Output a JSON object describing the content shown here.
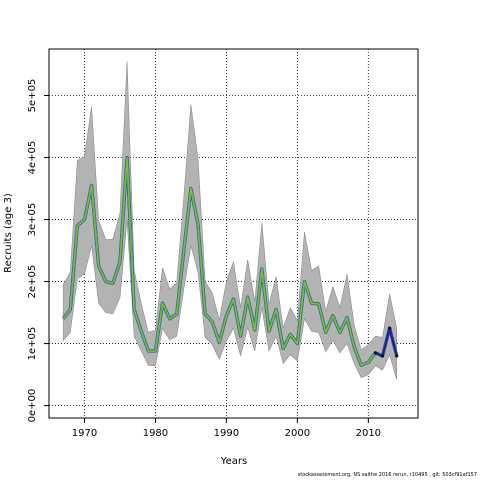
{
  "footer_text": "stockassessment.org, NS saithe 2016 rerun, r10495 , git: 503cf91af157",
  "colors": {
    "ci_band": "#b3b3b3",
    "ci_outline": "#8c8c8c",
    "lines": [
      "#1f1f8f",
      "#3070c0",
      "#20a0a0",
      "#2e9e4a",
      "#8ab832"
    ],
    "final_line": "#1f1f8f"
  },
  "chart_data": {
    "type": "line",
    "title": "",
    "xlabel": "Years",
    "ylabel": "Recruits (age 3)",
    "xlim": [
      1965,
      2017
    ],
    "ylim": [
      -20000,
      575000
    ],
    "xticks": [
      1970,
      1980,
      1990,
      2000,
      2010
    ],
    "xtick_labels": [
      "1970",
      "1980",
      "1990",
      "2000",
      "2010"
    ],
    "yticks": [
      0,
      100000,
      200000,
      300000,
      400000,
      500000
    ],
    "ytick_labels": [
      "0e+00",
      "1e+05",
      "2e+05",
      "3e+05",
      "4e+05",
      "5e+05"
    ],
    "grid": true,
    "x": [
      1967,
      1968,
      1969,
      1970,
      1971,
      1972,
      1973,
      1974,
      1975,
      1976,
      1977,
      1978,
      1979,
      1980,
      1981,
      1982,
      1983,
      1984,
      1985,
      1986,
      1987,
      1988,
      1989,
      1990,
      1991,
      1992,
      1993,
      1994,
      1995,
      1996,
      1997,
      1998,
      1999,
      2000,
      2001,
      2002,
      2003,
      2004,
      2005,
      2006,
      2007,
      2008,
      2009,
      2010,
      2011,
      2012,
      2013,
      2014
    ],
    "estimate": [
      140000,
      155000,
      290000,
      300000,
      355000,
      225000,
      200000,
      197000,
      232000,
      400000,
      155000,
      120000,
      88000,
      88000,
      165000,
      140000,
      148000,
      250000,
      350000,
      292000,
      148000,
      135000,
      102000,
      145000,
      172000,
      112000,
      175000,
      122000,
      220000,
      120000,
      155000,
      92000,
      115000,
      100000,
      200000,
      165000,
      164000,
      118000,
      145000,
      118000,
      142000,
      95000,
      65000,
      70000,
      85000,
      80000,
      125000,
      80000
    ],
    "ci_lower": [
      105000,
      118000,
      205000,
      212000,
      258000,
      165000,
      150000,
      148000,
      174000,
      300000,
      112000,
      88000,
      65000,
      64000,
      125000,
      106000,
      112000,
      188000,
      258000,
      215000,
      110000,
      98000,
      75000,
      104000,
      125000,
      80000,
      126000,
      88000,
      158000,
      88000,
      112000,
      68000,
      82000,
      72000,
      140000,
      120000,
      118000,
      87000,
      105000,
      85000,
      100000,
      68000,
      45000,
      50000,
      64000,
      57000,
      82000,
      42000
    ],
    "ci_upper": [
      195000,
      215000,
      395000,
      402000,
      482000,
      298000,
      268000,
      268000,
      310000,
      555000,
      218000,
      165000,
      118000,
      122000,
      222000,
      188000,
      198000,
      336000,
      485000,
      398000,
      200000,
      182000,
      138000,
      200000,
      232000,
      158000,
      235000,
      168000,
      295000,
      163000,
      208000,
      125000,
      158000,
      137000,
      280000,
      218000,
      225000,
      152000,
      192000,
      158000,
      212000,
      130000,
      90000,
      98000,
      112000,
      110000,
      180000,
      125000
    ]
  }
}
